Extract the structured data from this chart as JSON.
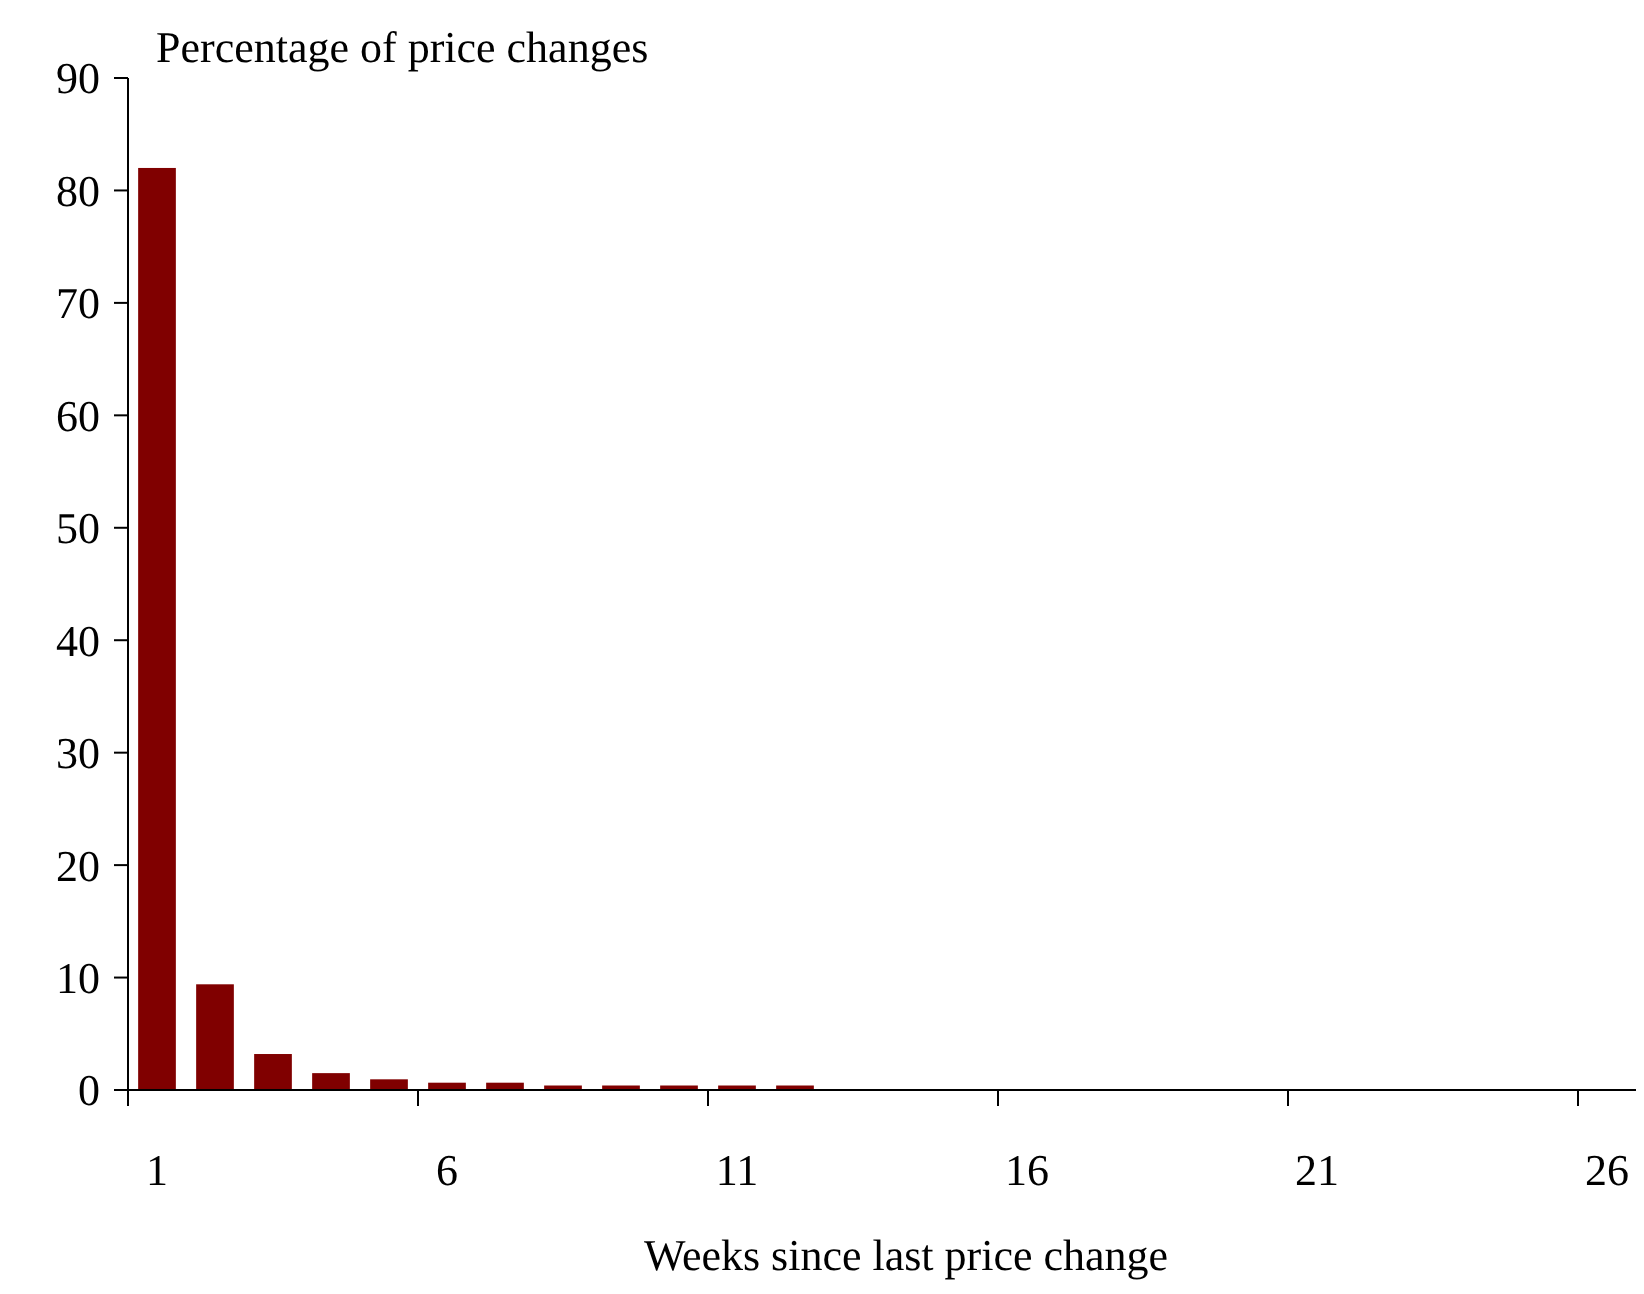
{
  "chart_data": {
    "type": "bar",
    "ylabel": "Percentage of price changes",
    "xlabel": "Weeks since last price change",
    "categories": [
      "1",
      null,
      null,
      null,
      null,
      "6",
      null,
      null,
      null,
      null,
      "11",
      null,
      null,
      null,
      null,
      "16",
      null,
      null,
      null,
      null,
      "21",
      null,
      null,
      null,
      null,
      "26"
    ],
    "values": [
      82,
      9.4,
      3.2,
      1.5,
      0.95,
      0.65,
      0.65,
      0.4,
      0.4,
      0.4,
      0.4,
      0.4,
      0,
      0,
      0,
      0,
      0,
      0,
      0,
      0,
      0,
      0,
      0,
      0,
      0,
      0
    ],
    "color": "#800000",
    "ylim": [
      0,
      90
    ],
    "yticks": [
      0,
      10,
      20,
      30,
      40,
      50,
      60,
      70,
      80,
      90
    ],
    "grid": false
  }
}
